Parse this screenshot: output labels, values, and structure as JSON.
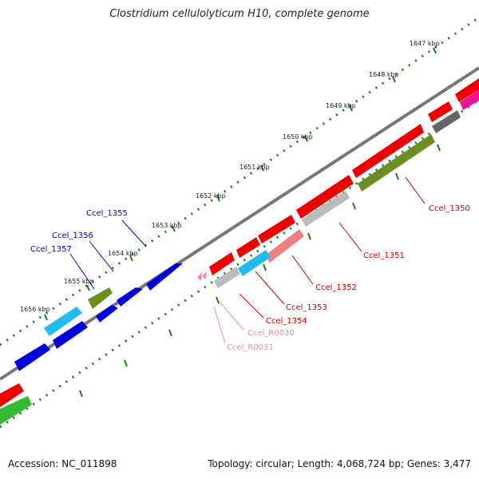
{
  "title": "Clostridium cellulolyticum H10, complete genome",
  "accession": "Accession: NC_011898",
  "summary": "Topology: circular; Length: 4,068,724 bp; Genes: 3,477",
  "colors": {
    "backbone": "#777777",
    "tick": "#1a7a1a",
    "forward_label": "#0000cc",
    "reverse_label": "#cc0000",
    "rna_label": "#ee88aa"
  },
  "ticks": [
    {
      "label": "1647 kbp"
    },
    {
      "label": "1648 kbp"
    },
    {
      "label": "1649 kbp"
    },
    {
      "label": "1650 kbp"
    },
    {
      "label": "1651 kbp"
    },
    {
      "label": "1652 kbp"
    },
    {
      "label": "1653 kbp"
    },
    {
      "label": "1654 kbp"
    },
    {
      "label": "1655 kbp"
    },
    {
      "label": "1656 kbp"
    }
  ],
  "gene_labels": [
    {
      "text": "Ccel_1355",
      "strand": "forward"
    },
    {
      "text": "Ccel_1356",
      "strand": "forward"
    },
    {
      "text": "Ccel_1357",
      "strand": "forward"
    },
    {
      "text": "Ccel_1350",
      "strand": "reverse"
    },
    {
      "text": "Ccel_1351",
      "strand": "reverse"
    },
    {
      "text": "Ccel_1352",
      "strand": "reverse"
    },
    {
      "text": "Ccel_1353",
      "strand": "reverse"
    },
    {
      "text": "Ccel_1354",
      "strand": "reverse"
    },
    {
      "text": "Ccel_R0030",
      "strand": "rna"
    },
    {
      "text": "Ccel_R0031",
      "strand": "rna"
    }
  ]
}
